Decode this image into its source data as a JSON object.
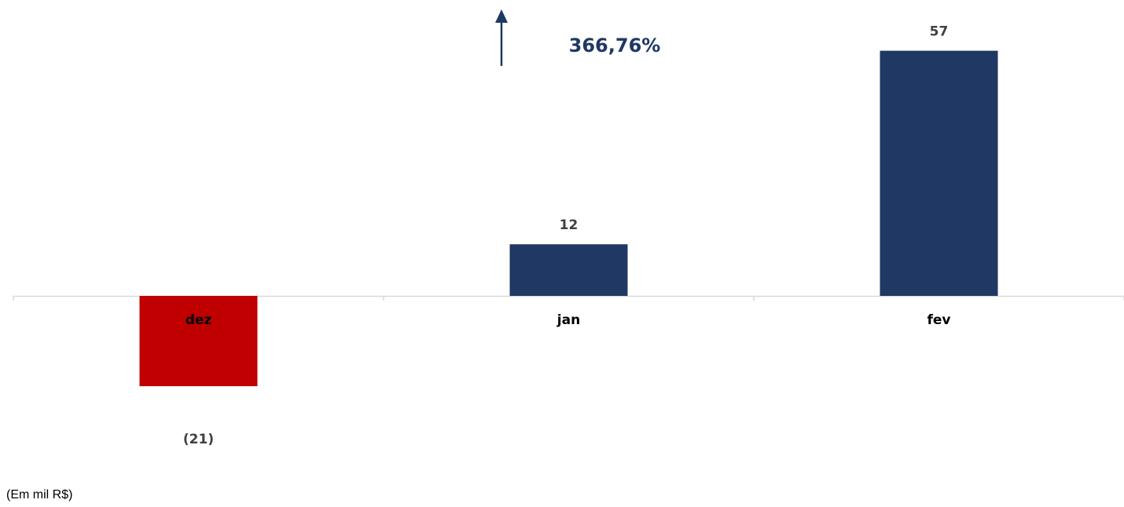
{
  "unit_note": "(Em mil R$)",
  "growth": {
    "label": "366,76%",
    "direction": "up",
    "color": "#1f3864"
  },
  "colors": {
    "positive": "#203864",
    "negative": "#c00000",
    "axis": "#d9d9d9"
  },
  "chart_data": {
    "type": "bar",
    "categories": [
      "dez",
      "jan",
      "fev"
    ],
    "values": [
      -21,
      12,
      57
    ],
    "value_labels": [
      "(21)",
      "12",
      "57"
    ],
    "title": "",
    "xlabel": "",
    "ylabel": "",
    "ylim": [
      -21,
      57
    ],
    "grid": false,
    "legend": "none"
  }
}
